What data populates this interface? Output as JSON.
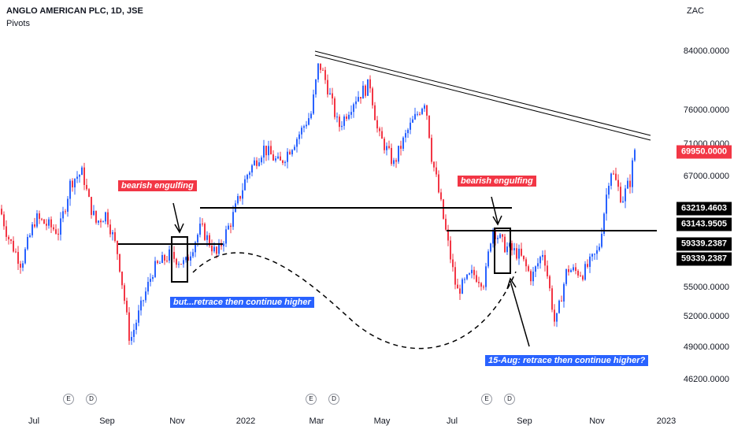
{
  "header": {
    "title": "ANGLO AMERICAN PLC, 1D, JSE",
    "indicator": "Pivots",
    "currency": "ZAC"
  },
  "colors": {
    "up": "#2962ff",
    "down": "#f23645",
    "line": "#000000"
  },
  "chart_data": {
    "type": "candlestick",
    "y_ticks": [
      "84000.0000",
      "76000.0000",
      "71000.0000",
      "67000.0000",
      "55000.0000",
      "52000.0000",
      "49000.0000",
      "46200.0000"
    ],
    "x_ticks": [
      "Jul",
      "Sep",
      "Nov",
      "2022",
      "Mar",
      "May",
      "Jul",
      "Sep",
      "Nov",
      "2023"
    ],
    "price_tags": [
      {
        "value": "69950.0000",
        "style": "red"
      },
      {
        "value": "63219.4603",
        "style": "dark"
      },
      {
        "value": "63143.9505",
        "style": "dark"
      },
      {
        "value": "59339.2387",
        "style": "dark"
      },
      {
        "value": "59339.2387",
        "style": "dark"
      }
    ],
    "annotations": [
      {
        "text": "bearish engulfing",
        "style": "red"
      },
      {
        "text": "but...retrace then continue higher",
        "style": "blue"
      },
      {
        "text": "bearish engulfing",
        "style": "red"
      },
      {
        "text": "15-Aug: retrace then continue higher?",
        "style": "blue"
      }
    ],
    "events": [
      "E",
      "D",
      "E",
      "D",
      "E",
      "D"
    ],
    "path": [
      [
        0,
        63500
      ],
      [
        10,
        60500
      ],
      [
        27,
        57500
      ],
      [
        45,
        62500
      ],
      [
        75,
        61000
      ],
      [
        90,
        66500
      ],
      [
        105,
        67500
      ],
      [
        112,
        64500
      ],
      [
        122,
        62000
      ],
      [
        135,
        63000
      ],
      [
        150,
        58500
      ],
      [
        165,
        49500
      ],
      [
        185,
        54500
      ],
      [
        195,
        57000
      ],
      [
        215,
        58500
      ],
      [
        235,
        57500
      ],
      [
        255,
        61500
      ],
      [
        275,
        58500
      ],
      [
        295,
        62500
      ],
      [
        315,
        67500
      ],
      [
        335,
        70500
      ],
      [
        355,
        68500
      ],
      [
        375,
        71500
      ],
      [
        395,
        75500
      ],
      [
        405,
        82500
      ],
      [
        415,
        79500
      ],
      [
        430,
        73500
      ],
      [
        450,
        77500
      ],
      [
        470,
        79500
      ],
      [
        480,
        72500
      ],
      [
        500,
        68500
      ],
      [
        520,
        73500
      ],
      [
        540,
        77500
      ],
      [
        548,
        69500
      ],
      [
        565,
        61500
      ],
      [
        580,
        54500
      ],
      [
        600,
        56500
      ],
      [
        615,
        55500
      ],
      [
        625,
        61500
      ],
      [
        640,
        59500
      ],
      [
        660,
        58500
      ],
      [
        675,
        56000
      ],
      [
        690,
        59000
      ],
      [
        705,
        51000
      ],
      [
        720,
        57000
      ],
      [
        740,
        56500
      ],
      [
        760,
        59000
      ],
      [
        775,
        68000
      ],
      [
        790,
        64500
      ],
      [
        800,
        66500
      ],
      [
        807,
        71000
      ]
    ]
  }
}
